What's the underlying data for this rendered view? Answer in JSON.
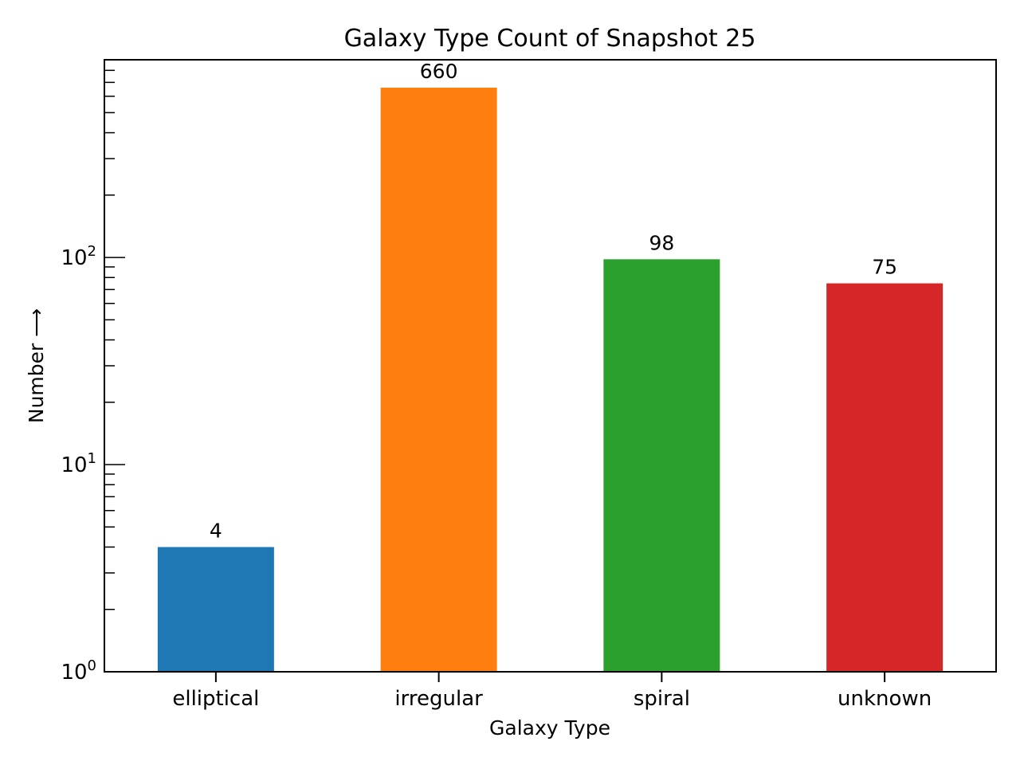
{
  "chart_data": {
    "type": "bar",
    "title": "Galaxy Type Count of Snapshot 25",
    "xlabel": "Galaxy Type",
    "ylabel": "Number ⟶",
    "y_scale": "log",
    "ylim": [
      1,
      900
    ],
    "grid": false,
    "legend": "none",
    "categories": [
      "elliptical",
      "irregular",
      "spiral",
      "unknown"
    ],
    "values": [
      4,
      660,
      98,
      75
    ],
    "value_labels": [
      "4",
      "660",
      "98",
      "75"
    ],
    "colors": [
      "#1f77b4",
      "#ff7f0e",
      "#2ca02c",
      "#d62728"
    ],
    "y_major_ticks": [
      {
        "value": 1,
        "base": "10",
        "exp": "0"
      },
      {
        "value": 10,
        "base": "10",
        "exp": "1"
      },
      {
        "value": 100,
        "base": "10",
        "exp": "2"
      }
    ]
  }
}
